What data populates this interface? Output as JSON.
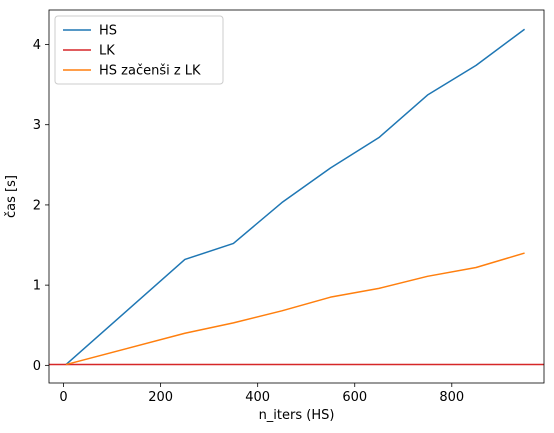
{
  "chart_data": {
    "type": "line",
    "title": "",
    "xlabel": "n_iters (HS)",
    "ylabel": "čas [s]",
    "xlim": [
      -30,
      990
    ],
    "ylim": [
      -0.22,
      4.43
    ],
    "xticks": [
      0,
      200,
      400,
      600,
      800
    ],
    "yticks": [
      0,
      1,
      2,
      3,
      4
    ],
    "grid": false,
    "legend_position": "top-left",
    "series": [
      {
        "name": "HS",
        "color": "#1f77b4",
        "x": [
          5,
          250,
          350,
          450,
          550,
          650,
          750,
          850,
          950
        ],
        "y": [
          0.01,
          1.32,
          1.52,
          2.03,
          2.46,
          2.84,
          3.37,
          3.74,
          4.19
        ]
      },
      {
        "name": "LK",
        "color": "#d62728",
        "style": "horizontal-line",
        "y_value": 0.01
      },
      {
        "name": "HS začenši z LK",
        "color": "#ff7f0e",
        "x": [
          5,
          250,
          350,
          450,
          550,
          650,
          750,
          850,
          950
        ],
        "y": [
          0.01,
          0.4,
          0.53,
          0.68,
          0.85,
          0.96,
          1.11,
          1.22,
          1.4
        ]
      }
    ]
  }
}
